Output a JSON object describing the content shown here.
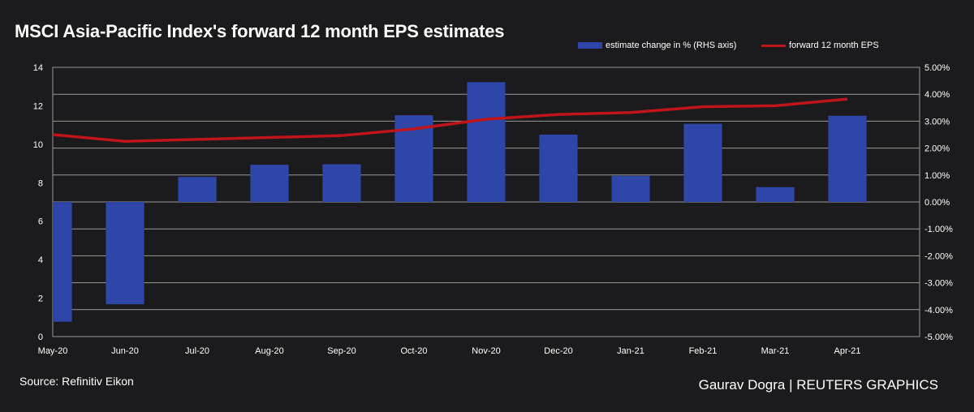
{
  "title": "MSCI Asia-Pacific Index's forward 12 month EPS estimates",
  "legend": {
    "bar_label": "estimate change in % (RHS axis)",
    "line_label": "forward 12 month EPS"
  },
  "source": "Source: Refinitiv Eikon",
  "credit": "Gaurav Dogra | REUTERS GRAPHICS",
  "colors": {
    "bar": "#2e46a8",
    "line": "#c0141b",
    "background": "#1b1b1d",
    "grid": "#9a9a9a"
  },
  "chart_data": {
    "type": "bar",
    "categories": [
      "May-20",
      "Jun-20",
      "Jul-20",
      "Aug-20",
      "Sep-20",
      "Oct-20",
      "Nov-20",
      "Dec-20",
      "Jan-21",
      "Feb-21",
      "Mar-21",
      "Apr-21"
    ],
    "series": [
      {
        "name": "estimate change in % (RHS axis)",
        "type": "bar",
        "axis": "right",
        "values": [
          -4.45,
          -3.8,
          0.93,
          1.38,
          1.4,
          3.22,
          4.45,
          2.5,
          0.97,
          2.9,
          0.55,
          3.2
        ]
      },
      {
        "name": "forward 12 month EPS",
        "type": "line",
        "axis": "left",
        "values": [
          10.5,
          10.15,
          10.25,
          10.35,
          10.45,
          10.8,
          11.3,
          11.55,
          11.65,
          11.95,
          12.0,
          12.35
        ]
      }
    ],
    "y_left": {
      "lim": [
        0,
        14
      ],
      "ticks": [
        "0",
        "2",
        "4",
        "6",
        "8",
        "10",
        "12",
        "14"
      ]
    },
    "y_right": {
      "lim": [
        -5,
        5
      ],
      "ticks": [
        "-5.00%",
        "-4.00%",
        "-3.00%",
        "-2.00%",
        "-1.00%",
        "0.00%",
        "1.00%",
        "2.00%",
        "3.00%",
        "4.00%",
        "5.00%"
      ]
    },
    "grid": true,
    "legend_position": "top-right"
  }
}
